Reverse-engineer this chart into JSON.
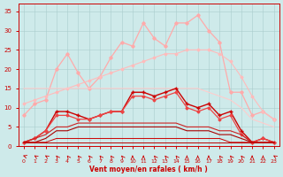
{
  "x": [
    0,
    1,
    2,
    3,
    4,
    5,
    6,
    7,
    8,
    9,
    10,
    11,
    12,
    13,
    14,
    15,
    16,
    17,
    18,
    19,
    20,
    21,
    22,
    23
  ],
  "series": [
    {
      "name": "rafales_max_light",
      "color": "#ffaaaa",
      "lw": 0.9,
      "marker": "D",
      "ms": 1.8,
      "y": [
        8,
        11,
        12,
        20,
        24,
        19,
        15,
        18,
        23,
        27,
        26,
        32,
        28,
        26,
        32,
        32,
        34,
        30,
        27,
        14,
        14,
        8,
        9,
        7
      ]
    },
    {
      "name": "vent_max_diagonal_light",
      "color": "#ffbbbb",
      "lw": 0.8,
      "marker": "D",
      "ms": 1.5,
      "y": [
        11,
        12,
        13,
        14,
        15,
        16,
        17,
        18,
        19,
        20,
        21,
        22,
        23,
        24,
        24,
        25,
        25,
        25,
        24,
        22,
        18,
        13,
        9,
        7
      ]
    },
    {
      "name": "vent_flat_light",
      "color": "#ffcccc",
      "lw": 0.8,
      "marker": null,
      "ms": 0,
      "y": [
        15,
        15,
        15,
        15,
        15,
        15,
        15,
        15,
        15,
        15,
        15,
        15,
        15,
        15,
        15,
        15,
        15,
        14,
        13,
        12,
        10,
        7,
        6,
        5
      ]
    },
    {
      "name": "vent_med_dark",
      "color": "#cc0000",
      "lw": 1.0,
      "marker": "+",
      "ms": 3,
      "y": [
        1,
        2,
        4,
        9,
        9,
        8,
        7,
        8,
        9,
        9,
        14,
        14,
        13,
        14,
        15,
        11,
        10,
        11,
        8,
        9,
        4,
        1,
        2,
        1
      ]
    },
    {
      "name": "vent_lower_med",
      "color": "#ee4444",
      "lw": 0.9,
      "marker": "D",
      "ms": 1.5,
      "y": [
        1,
        2,
        4,
        8,
        8,
        7,
        7,
        8,
        9,
        9,
        13,
        13,
        12,
        13,
        14,
        10,
        9,
        10,
        7,
        8,
        3,
        1,
        2,
        1
      ]
    },
    {
      "name": "vent_flat1",
      "color": "#cc2222",
      "lw": 0.8,
      "marker": null,
      "ms": 0,
      "y": [
        1,
        2,
        3,
        5,
        5,
        6,
        6,
        6,
        6,
        6,
        6,
        6,
        6,
        6,
        6,
        5,
        5,
        5,
        4,
        4,
        3,
        1,
        1,
        1
      ]
    },
    {
      "name": "vent_flat2",
      "color": "#aa0000",
      "lw": 0.8,
      "marker": null,
      "ms": 0,
      "y": [
        1,
        1,
        2,
        4,
        4,
        5,
        5,
        5,
        5,
        5,
        5,
        5,
        5,
        5,
        5,
        4,
        4,
        4,
        3,
        3,
        2,
        1,
        1,
        1
      ]
    },
    {
      "name": "vent_base1",
      "color": "#cc0000",
      "lw": 0.7,
      "marker": null,
      "ms": 0,
      "y": [
        1,
        1,
        1,
        2,
        2,
        2,
        2,
        2,
        2,
        2,
        2,
        2,
        2,
        2,
        2,
        2,
        2,
        2,
        2,
        1,
        1,
        1,
        1,
        1
      ]
    },
    {
      "name": "vent_base2",
      "color": "#bb0000",
      "lw": 0.7,
      "marker": null,
      "ms": 0,
      "y": [
        1,
        1,
        1,
        1,
        1,
        1,
        1,
        1,
        1,
        1,
        1,
        1,
        1,
        1,
        1,
        1,
        1,
        1,
        1,
        1,
        1,
        1,
        1,
        1
      ]
    }
  ],
  "wind_arrows_x": [
    0,
    1,
    2,
    3,
    4,
    5,
    6,
    7,
    8,
    9,
    10,
    11,
    12,
    13,
    14,
    15,
    16,
    17,
    18,
    19,
    20,
    21,
    22,
    23
  ],
  "wind_arrows_angles": [
    225,
    210,
    210,
    195,
    195,
    195,
    195,
    195,
    195,
    195,
    180,
    180,
    195,
    195,
    195,
    180,
    180,
    180,
    195,
    195,
    195,
    180,
    180,
    210
  ],
  "xlabel": "Vent moyen/en rafales ( km/h )",
  "ylim": [
    0,
    37
  ],
  "xlim": [
    -0.5,
    23.5
  ],
  "yticks": [
    0,
    5,
    10,
    15,
    20,
    25,
    30,
    35
  ],
  "xticks": [
    0,
    1,
    2,
    3,
    4,
    5,
    6,
    7,
    8,
    9,
    10,
    11,
    12,
    13,
    14,
    15,
    16,
    17,
    18,
    19,
    20,
    21,
    22,
    23
  ],
  "bg_color": "#ceeaea",
  "grid_color": "#aacccc",
  "tick_color": "#cc0000",
  "label_color": "#cc0000",
  "arrow_color": "#cc0000"
}
